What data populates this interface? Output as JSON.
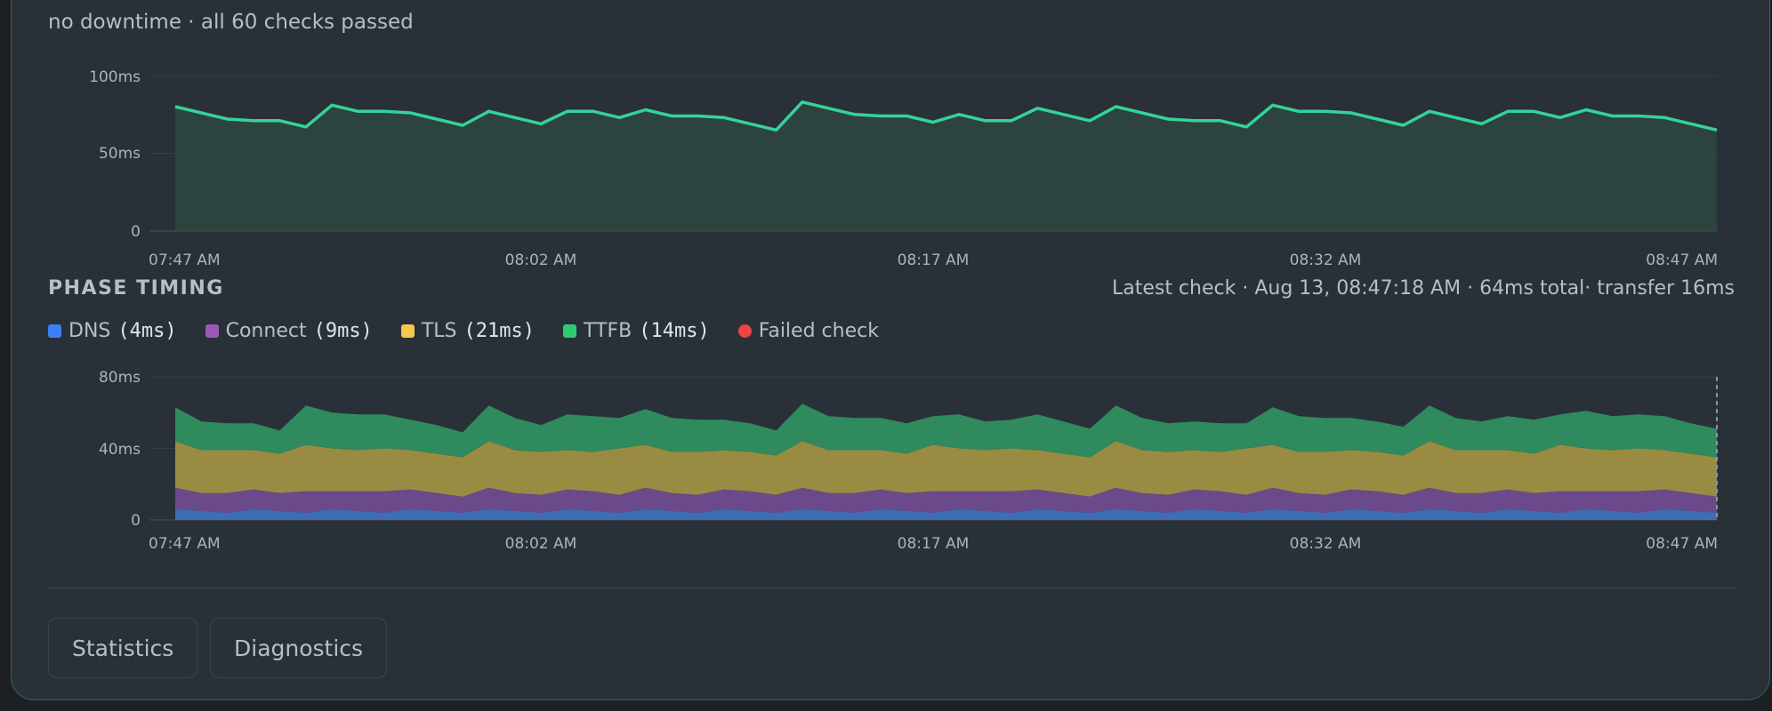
{
  "summary": "no downtime · all 60 checks passed",
  "latency_chart": {
    "y_ticks": [
      "100ms",
      "50ms",
      "0"
    ],
    "x_ticks": [
      "07:47 AM",
      "08:02 AM",
      "08:17 AM",
      "08:32 AM",
      "08:47 AM"
    ]
  },
  "phase": {
    "title": "PHASE TIMING",
    "latest": "Latest check · Aug 13, 08:47:18 AM · 64ms total· transfer 16ms",
    "legend": [
      {
        "name": "DNS",
        "value": "(4ms)",
        "color": "#3b82f6"
      },
      {
        "name": "Connect",
        "value": "(9ms)",
        "color": "#9b59b6"
      },
      {
        "name": "TLS",
        "value": "(21ms)",
        "color": "#f2c94c"
      },
      {
        "name": "TTFB",
        "value": "(14ms)",
        "color": "#2ecc71"
      },
      {
        "name": "Failed check",
        "value": "",
        "color": "#ef4444"
      }
    ],
    "y_ticks": [
      "80ms",
      "40ms",
      "0"
    ],
    "x_ticks": [
      "07:47 AM",
      "08:02 AM",
      "08:17 AM",
      "08:32 AM",
      "08:47 AM"
    ]
  },
  "buttons": {
    "statistics": "Statistics",
    "diagnostics": "Diagnostics"
  },
  "chart_data": [
    {
      "type": "area",
      "title": "",
      "ylim": [
        0,
        100
      ],
      "x_labels": [
        "07:47 AM",
        "08:02 AM",
        "08:17 AM",
        "08:32 AM",
        "08:47 AM"
      ],
      "series": [
        {
          "values": [
            80,
            76,
            72,
            71,
            71,
            67,
            81,
            77,
            77,
            76,
            72,
            68,
            77,
            73,
            69,
            77,
            77,
            73,
            78,
            74,
            74,
            73,
            69,
            65,
            83,
            79,
            75,
            74,
            74,
            70,
            75,
            71,
            71,
            79,
            75,
            71,
            80,
            76,
            72,
            71,
            71,
            67,
            81,
            77,
            77,
            76,
            72,
            68,
            77,
            73,
            69,
            77,
            77,
            73,
            78,
            74,
            74,
            73,
            69,
            65
          ]
        }
      ]
    },
    {
      "type": "area",
      "title": "",
      "ylim": [
        0,
        80
      ],
      "x_labels": [
        "07:47 AM",
        "08:02 AM",
        "08:17 AM",
        "08:32 AM",
        "08:47 AM"
      ],
      "series": [
        {
          "name": "DNS",
          "values": [
            6,
            5,
            4,
            6,
            5,
            4,
            6,
            5,
            4,
            6,
            5,
            4,
            6,
            5,
            4,
            6,
            5,
            4,
            6,
            5,
            4,
            6,
            5,
            4,
            6,
            5,
            4,
            6,
            5,
            4,
            6,
            5,
            4,
            6,
            5,
            4,
            6,
            5,
            4,
            6,
            5,
            4,
            6,
            5,
            4,
            6,
            5,
            4,
            6,
            5,
            4,
            6,
            5,
            4,
            6,
            5,
            4,
            6,
            5,
            4
          ]
        },
        {
          "name": "Connect",
          "values": [
            12,
            10,
            11,
            11,
            10,
            12,
            10,
            11,
            12,
            11,
            10,
            9,
            12,
            10,
            10,
            11,
            11,
            10,
            12,
            10,
            10,
            11,
            11,
            10,
            12,
            10,
            11,
            11,
            10,
            12,
            10,
            11,
            12,
            11,
            10,
            9,
            12,
            10,
            10,
            11,
            11,
            10,
            12,
            10,
            10,
            11,
            11,
            10,
            12,
            10,
            11,
            11,
            10,
            12,
            10,
            11,
            12,
            11,
            10,
            9
          ]
        },
        {
          "name": "TLS",
          "values": [
            26,
            24,
            24,
            22,
            22,
            26,
            24,
            23,
            24,
            22,
            22,
            22,
            26,
            24,
            24,
            22,
            22,
            26,
            24,
            23,
            24,
            22,
            22,
            22,
            26,
            24,
            24,
            22,
            22,
            26,
            24,
            23,
            24,
            22,
            22,
            22,
            26,
            24,
            24,
            22,
            22,
            26,
            24,
            23,
            24,
            22,
            22,
            22,
            26,
            24,
            24,
            22,
            22,
            26,
            24,
            23,
            24,
            22,
            22,
            22
          ]
        },
        {
          "name": "TTFB",
          "values": [
            19,
            16,
            15,
            15,
            13,
            22,
            20,
            20,
            19,
            17,
            16,
            14,
            20,
            18,
            15,
            20,
            20,
            17,
            20,
            19,
            18,
            17,
            16,
            14,
            21,
            19,
            18,
            18,
            17,
            16,
            19,
            16,
            16,
            20,
            18,
            16,
            20,
            18,
            16,
            16,
            16,
            14,
            21,
            20,
            19,
            18,
            17,
            16,
            20,
            18,
            16,
            19,
            19,
            17,
            21,
            19,
            19,
            19,
            17,
            16
          ]
        }
      ]
    }
  ]
}
